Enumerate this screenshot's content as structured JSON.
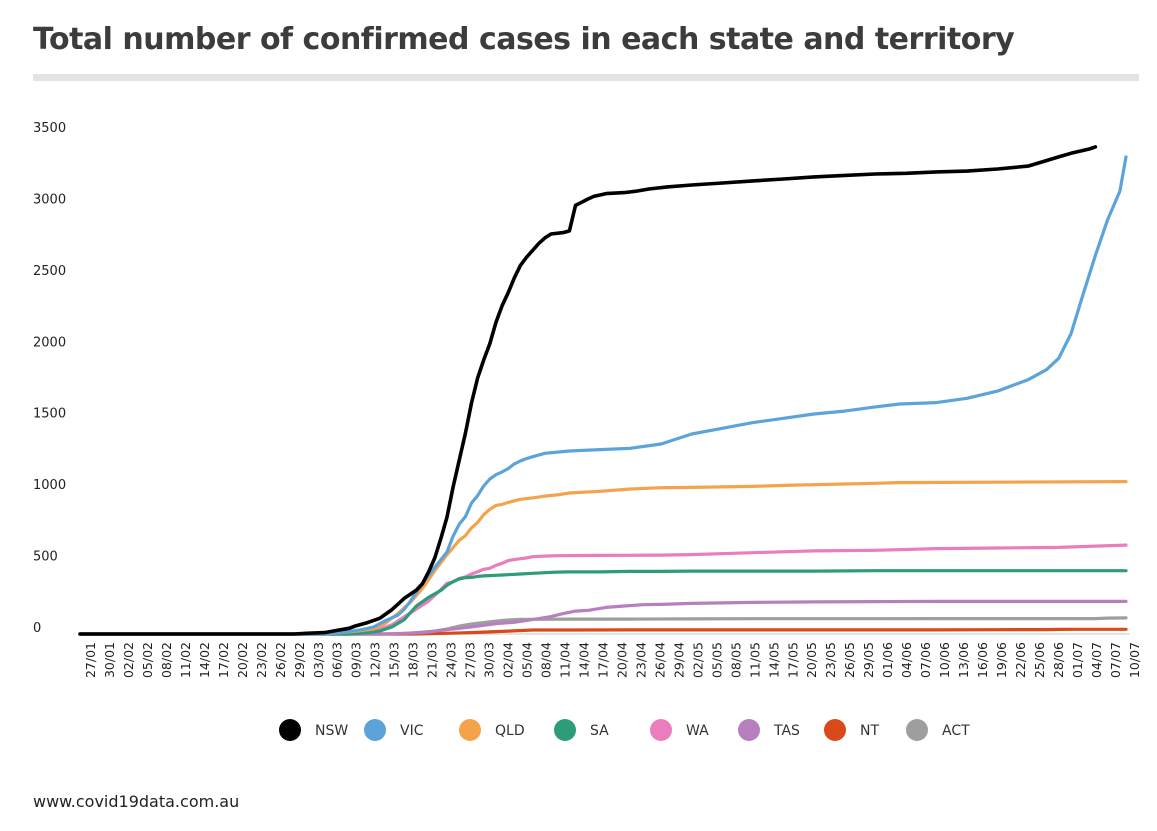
{
  "title": "Total number of confirmed cases in each state and territory",
  "source": "www.covid19data.com.au",
  "chart_data": {
    "type": "line",
    "title": "Total number of confirmed cases in each state and territory",
    "xlabel": "",
    "ylabel": "",
    "ylim": [
      0,
      3500
    ],
    "yticks": [
      0,
      500,
      1000,
      1500,
      2000,
      2500,
      3000,
      3500
    ],
    "grid": false,
    "legend_position": "bottom",
    "x_start": "27/01",
    "x_end": "10/07",
    "x_count": 166,
    "xtick_step": 3,
    "xtick_labels": [
      "27/01",
      "30/01",
      "02/02",
      "05/02",
      "08/02",
      "11/02",
      "14/02",
      "17/02",
      "20/02",
      "23/02",
      "26/02",
      "29/02",
      "03/03",
      "06/03",
      "09/03",
      "12/03",
      "15/03",
      "18/03",
      "21/03",
      "24/03",
      "27/03",
      "30/03",
      "02/04",
      "05/04",
      "08/04",
      "11/04",
      "14/04",
      "17/04",
      "20/04",
      "23/04",
      "26/04",
      "29/04",
      "02/05",
      "05/05",
      "08/05",
      "11/05",
      "14/05",
      "17/05",
      "20/05",
      "23/05",
      "26/05",
      "29/05",
      "01/06",
      "04/06",
      "07/06",
      "10/06",
      "13/06",
      "16/06",
      "19/06",
      "22/06",
      "25/06",
      "28/06",
      "01/07",
      "04/07",
      "07/07",
      "10/07"
    ],
    "series": [
      {
        "name": "NSW",
        "color": "#000000",
        "points": [
          [
            0,
            0
          ],
          [
            35,
            0
          ],
          [
            37,
            5
          ],
          [
            40,
            10
          ],
          [
            42,
            25
          ],
          [
            44,
            40
          ],
          [
            45,
            56
          ],
          [
            47,
            80
          ],
          [
            49,
            110
          ],
          [
            51,
            171
          ],
          [
            53,
            249
          ],
          [
            55,
            307
          ],
          [
            56,
            353
          ],
          [
            57,
            436
          ],
          [
            58,
            533
          ],
          [
            59,
            669
          ],
          [
            60,
            818
          ],
          [
            61,
            1029
          ],
          [
            62,
            1219
          ],
          [
            63,
            1405
          ],
          [
            64,
            1617
          ],
          [
            65,
            1791
          ],
          [
            66,
            1918
          ],
          [
            67,
            2032
          ],
          [
            68,
            2182
          ],
          [
            69,
            2298
          ],
          [
            70,
            2389
          ],
          [
            71,
            2493
          ],
          [
            72,
            2580
          ],
          [
            73,
            2637
          ],
          [
            74,
            2686
          ],
          [
            75,
            2734
          ],
          [
            76,
            2773
          ],
          [
            77,
            2800
          ],
          [
            79,
            2810
          ],
          [
            80,
            2822
          ],
          [
            81,
            3000
          ],
          [
            82,
            3022
          ],
          [
            83,
            3044
          ],
          [
            84,
            3063
          ],
          [
            86,
            3083
          ],
          [
            89,
            3090
          ],
          [
            91,
            3100
          ],
          [
            93,
            3115
          ],
          [
            96,
            3130
          ],
          [
            100,
            3143
          ],
          [
            105,
            3157
          ],
          [
            110,
            3172
          ],
          [
            115,
            3185
          ],
          [
            120,
            3200
          ],
          [
            125,
            3210
          ],
          [
            130,
            3220
          ],
          [
            135,
            3225
          ],
          [
            140,
            3235
          ],
          [
            145,
            3240
          ],
          [
            150,
            3255
          ],
          [
            155,
            3275
          ],
          [
            160,
            3340
          ],
          [
            162,
            3365
          ],
          [
            165,
            3395
          ],
          [
            166,
            3410
          ]
        ]
      },
      {
        "name": "VIC",
        "color": "#5ba3d9",
        "points": [
          [
            0,
            0
          ],
          [
            40,
            0
          ],
          [
            43,
            11
          ],
          [
            46,
            30
          ],
          [
            48,
            49
          ],
          [
            50,
            94
          ],
          [
            52,
            133
          ],
          [
            53,
            173
          ],
          [
            54,
            229
          ],
          [
            56,
            355
          ],
          [
            58,
            466
          ],
          [
            60,
            574
          ],
          [
            61,
            685
          ],
          [
            62,
            769
          ],
          [
            63,
            821
          ],
          [
            64,
            917
          ],
          [
            65,
            968
          ],
          [
            66,
            1036
          ],
          [
            67,
            1085
          ],
          [
            68,
            1115
          ],
          [
            69,
            1135
          ],
          [
            70,
            1158
          ],
          [
            71,
            1191
          ],
          [
            72,
            1212
          ],
          [
            73,
            1228
          ],
          [
            74,
            1241
          ],
          [
            76,
            1265
          ],
          [
            80,
            1281
          ],
          [
            85,
            1291
          ],
          [
            90,
            1300
          ],
          [
            95,
            1330
          ],
          [
            100,
            1400
          ],
          [
            105,
            1440
          ],
          [
            110,
            1480
          ],
          [
            115,
            1510
          ],
          [
            120,
            1540
          ],
          [
            125,
            1560
          ],
          [
            130,
            1590
          ],
          [
            134,
            1610
          ],
          [
            140,
            1620
          ],
          [
            145,
            1650
          ],
          [
            150,
            1700
          ],
          [
            155,
            1780
          ],
          [
            158,
            1850
          ],
          [
            160,
            1930
          ],
          [
            162,
            2100
          ],
          [
            164,
            2380
          ],
          [
            166,
            2650
          ],
          [
            168,
            2900
          ],
          [
            170,
            3100
          ],
          [
            171,
            3340
          ]
        ]
      },
      {
        "name": "QLD",
        "color": "#f5a34b",
        "points": [
          [
            0,
            0
          ],
          [
            40,
            0
          ],
          [
            44,
            15
          ],
          [
            48,
            35
          ],
          [
            50,
            78
          ],
          [
            52,
            144
          ],
          [
            54,
            221
          ],
          [
            56,
            319
          ],
          [
            58,
            443
          ],
          [
            60,
            555
          ],
          [
            62,
            656
          ],
          [
            63,
            689
          ],
          [
            64,
            743
          ],
          [
            65,
            781
          ],
          [
            66,
            835
          ],
          [
            67,
            873
          ],
          [
            68,
            900
          ],
          [
            69,
            907
          ],
          [
            70,
            921
          ],
          [
            72,
            943
          ],
          [
            74,
            953
          ],
          [
            76,
            965
          ],
          [
            78,
            974
          ],
          [
            80,
            987
          ],
          [
            85,
            999
          ],
          [
            90,
            1015
          ],
          [
            95,
            1024
          ],
          [
            100,
            1026
          ],
          [
            105,
            1030
          ],
          [
            110,
            1033
          ],
          [
            115,
            1040
          ],
          [
            120,
            1045
          ],
          [
            125,
            1050
          ],
          [
            130,
            1055
          ],
          [
            134,
            1060
          ],
          [
            171,
            1067
          ]
        ]
      },
      {
        "name": "SA",
        "color": "#2e9c7a",
        "points": [
          [
            0,
            0
          ],
          [
            44,
            0
          ],
          [
            47,
            10
          ],
          [
            49,
            20
          ],
          [
            51,
            50
          ],
          [
            53,
            100
          ],
          [
            55,
            197
          ],
          [
            57,
            257
          ],
          [
            59,
            305
          ],
          [
            60,
            341
          ],
          [
            61,
            367
          ],
          [
            62,
            386
          ],
          [
            63,
            394
          ],
          [
            64,
            396
          ],
          [
            65,
            403
          ],
          [
            66,
            407
          ],
          [
            67,
            409
          ],
          [
            68,
            411
          ],
          [
            69,
            413
          ],
          [
            70,
            415
          ],
          [
            72,
            420
          ],
          [
            74,
            425
          ],
          [
            76,
            429
          ],
          [
            78,
            433
          ],
          [
            80,
            435
          ],
          [
            85,
            435
          ],
          [
            90,
            438
          ],
          [
            95,
            438
          ],
          [
            100,
            440
          ],
          [
            110,
            440
          ],
          [
            120,
            440
          ],
          [
            130,
            443
          ],
          [
            140,
            443
          ],
          [
            150,
            443
          ],
          [
            160,
            443
          ],
          [
            171,
            443
          ]
        ]
      },
      {
        "name": "WA",
        "color": "#ea7dbd",
        "points": [
          [
            0,
            0
          ],
          [
            44,
            0
          ],
          [
            47,
            15
          ],
          [
            49,
            35
          ],
          [
            51,
            64
          ],
          [
            53,
            120
          ],
          [
            55,
            175
          ],
          [
            57,
            231
          ],
          [
            59,
            311
          ],
          [
            60,
            355
          ],
          [
            61,
            364
          ],
          [
            62,
            389
          ],
          [
            63,
            400
          ],
          [
            64,
            420
          ],
          [
            65,
            436
          ],
          [
            66,
            453
          ],
          [
            67,
            460
          ],
          [
            68,
            481
          ],
          [
            69,
            495
          ],
          [
            70,
            514
          ],
          [
            71,
            521
          ],
          [
            72,
            527
          ],
          [
            73,
            532
          ],
          [
            74,
            541
          ],
          [
            76,
            545
          ],
          [
            78,
            548
          ],
          [
            80,
            549
          ],
          [
            85,
            550
          ],
          [
            90,
            551
          ],
          [
            95,
            552
          ],
          [
            100,
            556
          ],
          [
            110,
            569
          ],
          [
            120,
            582
          ],
          [
            130,
            586
          ],
          [
            140,
            598
          ],
          [
            150,
            602
          ],
          [
            160,
            606
          ],
          [
            166,
            615
          ],
          [
            171,
            622
          ]
        ]
      },
      {
        "name": "TAS",
        "color": "#b87fc0",
        "points": [
          [
            0,
            0
          ],
          [
            50,
            0
          ],
          [
            53,
            5
          ],
          [
            56,
            10
          ],
          [
            60,
            30
          ],
          [
            64,
            50
          ],
          [
            68,
            72
          ],
          [
            71,
            82
          ],
          [
            73,
            95
          ],
          [
            75,
            108
          ],
          [
            77,
            122
          ],
          [
            79,
            143
          ],
          [
            81,
            160
          ],
          [
            83,
            165
          ],
          [
            86,
            186
          ],
          [
            89,
            196
          ],
          [
            92,
            205
          ],
          [
            95,
            207
          ],
          [
            100,
            214
          ],
          [
            110,
            221
          ],
          [
            120,
            225
          ],
          [
            130,
            227
          ],
          [
            140,
            228
          ],
          [
            150,
            228
          ],
          [
            160,
            228
          ],
          [
            171,
            228
          ]
        ]
      },
      {
        "name": "NT",
        "color": "#d9491a",
        "points": [
          [
            0,
            0
          ],
          [
            55,
            0
          ],
          [
            57,
            3
          ],
          [
            60,
            5
          ],
          [
            64,
            10
          ],
          [
            67,
            15
          ],
          [
            70,
            20
          ],
          [
            74,
            28
          ],
          [
            80,
            28
          ],
          [
            90,
            29
          ],
          [
            100,
            29
          ],
          [
            110,
            29
          ],
          [
            120,
            29
          ],
          [
            130,
            29
          ],
          [
            140,
            29
          ],
          [
            150,
            30
          ],
          [
            158,
            31
          ],
          [
            160,
            32
          ],
          [
            162,
            33
          ],
          [
            166,
            33
          ],
          [
            171,
            33
          ]
        ]
      },
      {
        "name": "ACT",
        "color": "#9e9e9e",
        "points": [
          [
            0,
            0
          ],
          [
            52,
            0
          ],
          [
            55,
            10
          ],
          [
            58,
            20
          ],
          [
            60,
            35
          ],
          [
            62,
            55
          ],
          [
            64,
            70
          ],
          [
            66,
            80
          ],
          [
            68,
            90
          ],
          [
            70,
            98
          ],
          [
            72,
            102
          ],
          [
            74,
            103
          ],
          [
            76,
            103
          ],
          [
            80,
            104
          ],
          [
            90,
            104
          ],
          [
            100,
            106
          ],
          [
            110,
            107
          ],
          [
            120,
            107
          ],
          [
            130,
            107
          ],
          [
            140,
            108
          ],
          [
            150,
            108
          ],
          [
            160,
            108
          ],
          [
            166,
            108
          ],
          [
            168,
            111
          ],
          [
            171,
            113
          ]
        ]
      }
    ]
  }
}
